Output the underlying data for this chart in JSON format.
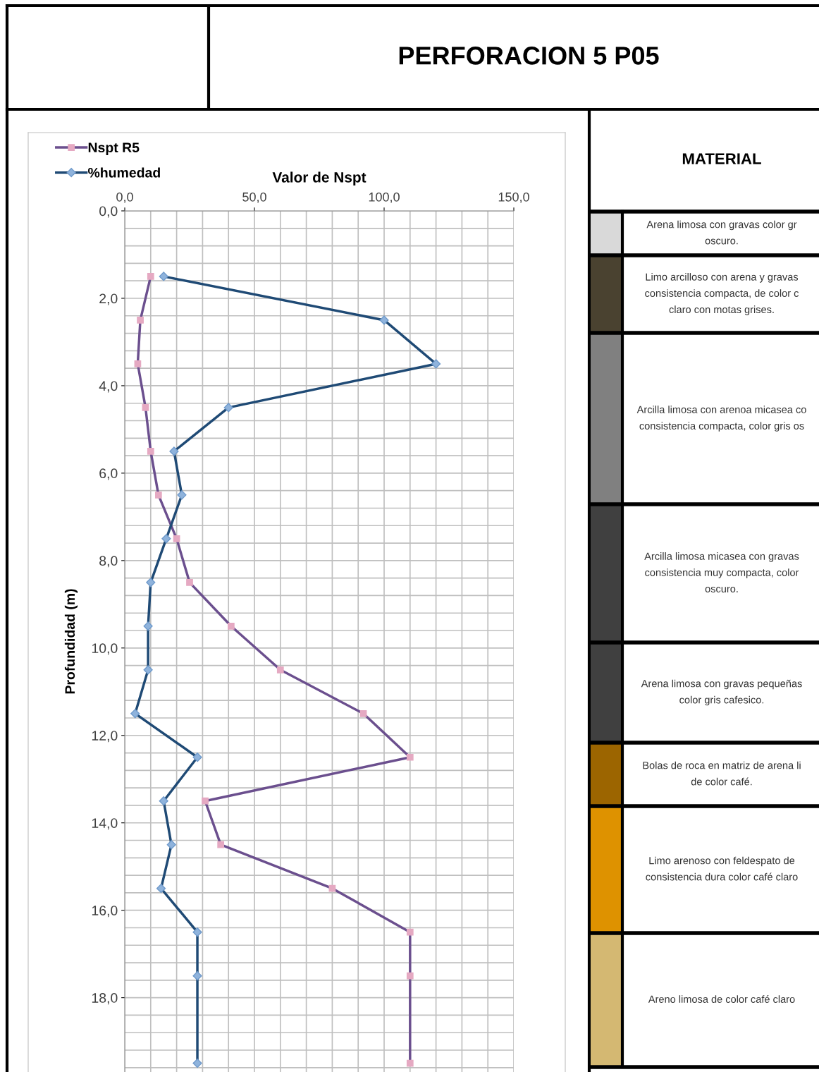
{
  "chart_data": [
    {
      "type": "line",
      "title": "PERFORACION 5 P05",
      "xlabel": "Valor de Nspt",
      "ylabel": "Profundidad (m)",
      "series": [
        {
          "name": "Nspt R5",
          "color": "#6b4f8e",
          "marker": "square",
          "x": [
            10,
            6,
            5,
            8,
            10,
            13,
            20,
            25,
            41,
            60,
            92,
            110,
            31,
            37,
            80,
            110,
            110,
            110
          ],
          "values": [
            1.5,
            2.5,
            3.5,
            4.5,
            5.5,
            6.5,
            7.5,
            8.5,
            9.5,
            10.5,
            11.5,
            12.5,
            13.5,
            14.5,
            15.5,
            16.5,
            17.5,
            19.5
          ]
        },
        {
          "name": "%humedad",
          "color": "#1f4a75",
          "marker": "diamond",
          "x": [
            15,
            100,
            120,
            40,
            19,
            22,
            16,
            10,
            9,
            9,
            4,
            28,
            15,
            18,
            14,
            28,
            28,
            28
          ],
          "values": [
            1.5,
            2.5,
            3.5,
            4.5,
            5.5,
            6.5,
            7.5,
            8.5,
            9.5,
            10.5,
            11.5,
            12.5,
            13.5,
            14.5,
            15.5,
            16.5,
            17.5,
            19.5
          ]
        }
      ],
      "xlim": [
        0,
        150
      ],
      "xticks": [
        {
          "value": 0,
          "label": "0,0"
        },
        {
          "value": 50,
          "label": "50,0"
        },
        {
          "value": 100,
          "label": "100,0"
        },
        {
          "value": 150,
          "label": "150,0"
        }
      ],
      "ylim": [
        19.7,
        0
      ],
      "yticks": [
        {
          "value": 0,
          "label": "0,0"
        },
        {
          "value": 2,
          "label": "2,0"
        },
        {
          "value": 4,
          "label": "4,0"
        },
        {
          "value": 6,
          "label": "6,0"
        },
        {
          "value": 8,
          "label": "8,0"
        },
        {
          "value": 10,
          "label": "10,0"
        },
        {
          "value": 12,
          "label": "12,0"
        },
        {
          "value": 14,
          "label": "14,0"
        },
        {
          "value": 16,
          "label": "16,0"
        },
        {
          "value": 18,
          "label": "18,0"
        }
      ],
      "grid": true,
      "legend": "top left",
      "line_style": "solid"
    },
    {
      "type": "other",
      "title": "MATERIAL",
      "annotations": [
        "Arena limosa con gravas color gr\noscuro.",
        "Limo arcilloso con arena y gravas\nconsistencia compacta, de color c\nclaro con motas grises.",
        "Arcilla limosa con arenoa micasea co\nconsistencia compacta, color gris os",
        "Arcilla limosa micasea con gravas\nconsistencia muy compacta, color\noscuro.",
        "Arena limosa con gravas pequeñas\ncolor gris cafesico.",
        "Bolas de roca en matriz de arena li\nde color café.",
        "Limo arenoso con feldespato de\nconsistencia dura color café claro",
        "Areno limosa de color café claro"
      ],
      "colors": [
        "#d9d9d9",
        "#4a4230",
        "#808080",
        "#404040",
        "#404040",
        "#9c6500",
        "#de9200",
        "#d4b872"
      ]
    }
  ]
}
